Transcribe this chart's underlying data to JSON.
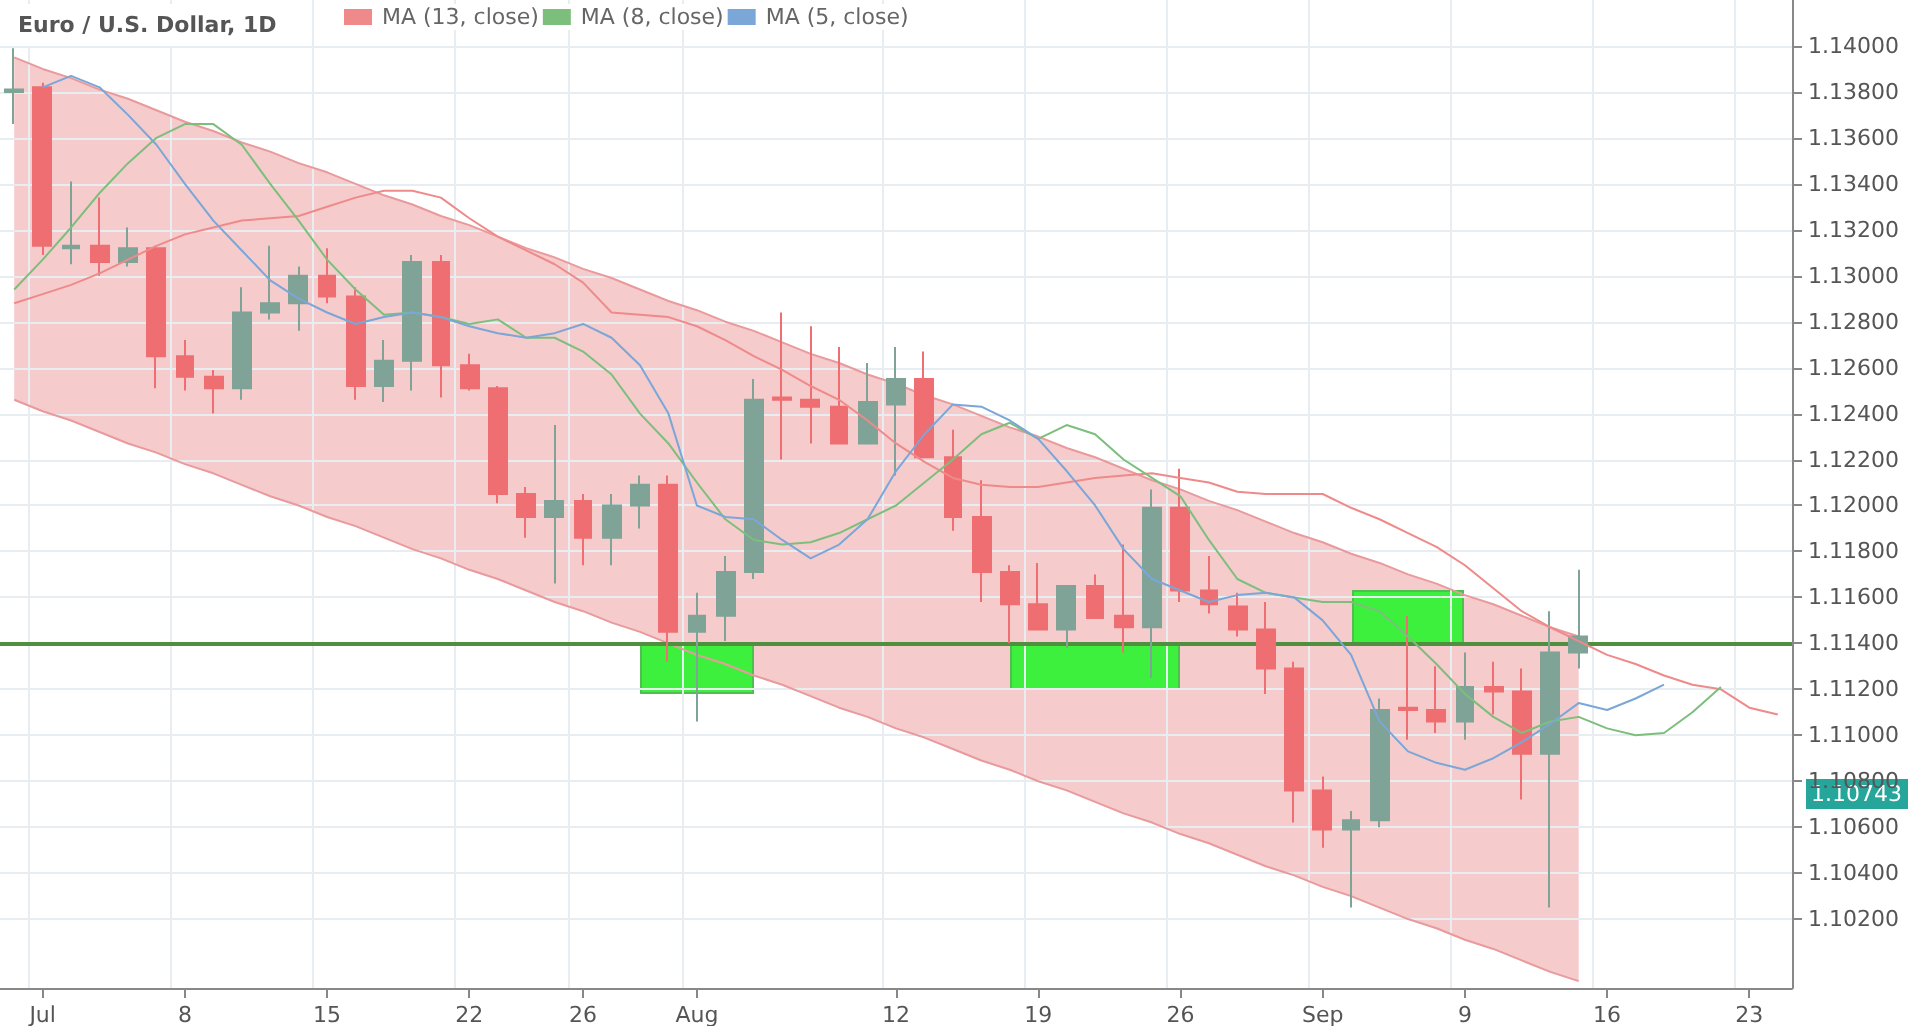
{
  "chart_data": {
    "type": "candlestick",
    "title": "Euro / U.S. Dollar, 1D",
    "categories": [
      null,
      "Jul",
      null,
      null,
      null,
      null,
      "8",
      null,
      null,
      null,
      null,
      "15",
      null,
      null,
      null,
      null,
      "22",
      null,
      null,
      null,
      "26",
      null,
      null,
      null,
      "Aug",
      null,
      null,
      null,
      null,
      null,
      null,
      "12",
      null,
      null,
      null,
      null,
      "19",
      null,
      null,
      null,
      null,
      "26",
      null,
      null,
      null,
      null,
      "Sep",
      null,
      null,
      null,
      null,
      "9",
      null,
      null,
      null,
      null,
      "16",
      null,
      null,
      null,
      null,
      "23",
      null
    ],
    "ohlc": [
      [
        1.138,
        1.1399,
        1.1366,
        1.1381
      ],
      [
        1.1382,
        1.1384,
        1.1309,
        1.1313
      ],
      [
        1.1312,
        1.1341,
        1.1305,
        1.1313
      ],
      [
        1.1313,
        1.1334,
        1.13,
        1.1306
      ],
      [
        1.1306,
        1.1321,
        1.1304,
        1.1312
      ],
      [
        1.1312,
        1.1313,
        1.1251,
        1.1265
      ],
      [
        1.1265,
        1.1272,
        1.125,
        1.1256
      ],
      [
        1.1256,
        1.1259,
        1.124,
        1.1251
      ],
      [
        1.1251,
        1.1295,
        1.1246,
        1.1284
      ],
      [
        1.1284,
        1.1313,
        1.1281,
        1.1288
      ],
      [
        1.1288,
        1.1304,
        1.1276,
        1.13
      ],
      [
        1.13,
        1.1312,
        1.1288,
        1.1291
      ],
      [
        1.1291,
        1.1295,
        1.1246,
        1.1252
      ],
      [
        1.1252,
        1.1272,
        1.1245,
        1.1263
      ],
      [
        1.1263,
        1.1309,
        1.125,
        1.1306
      ],
      [
        1.1306,
        1.1309,
        1.1247,
        1.1261
      ],
      [
        1.1261,
        1.1266,
        1.125,
        1.1251
      ],
      [
        1.1251,
        1.1252,
        1.1201,
        1.1205
      ],
      [
        1.1205,
        1.1208,
        1.1186,
        1.1195
      ],
      [
        1.1195,
        1.1235,
        1.1166,
        1.1202
      ],
      [
        1.1202,
        1.1205,
        1.1174,
        1.1186
      ],
      [
        1.1186,
        1.1205,
        1.1174,
        1.12
      ],
      [
        1.12,
        1.1213,
        1.119,
        1.1209
      ],
      [
        1.1209,
        1.1213,
        1.1132,
        1.1145
      ],
      [
        1.1145,
        1.1162,
        1.1106,
        1.1152
      ],
      [
        1.1152,
        1.1178,
        1.1141,
        1.1171
      ],
      [
        1.1171,
        1.1255,
        1.1168,
        1.1246
      ],
      [
        1.1247,
        1.1284,
        1.122,
        1.1246
      ],
      [
        1.1246,
        1.1278,
        1.1227,
        1.1243
      ],
      [
        1.1243,
        1.1269,
        1.1227,
        1.1227
      ],
      [
        1.1227,
        1.1262,
        1.1227,
        1.1245
      ],
      [
        1.1244,
        1.1269,
        1.1213,
        1.1255
      ],
      [
        1.1255,
        1.1267,
        1.1221,
        1.1221
      ],
      [
        1.1221,
        1.1233,
        1.1189,
        1.1195
      ],
      [
        1.1195,
        1.1211,
        1.1158,
        1.1171
      ],
      [
        1.1171,
        1.1174,
        1.114,
        1.1157
      ],
      [
        1.1157,
        1.1175,
        1.1146,
        1.1146
      ],
      [
        1.1146,
        1.1165,
        1.1138,
        1.1165
      ],
      [
        1.1165,
        1.117,
        1.1151,
        1.1151
      ],
      [
        1.1152,
        1.1183,
        1.1136,
        1.1147
      ],
      [
        1.1147,
        1.1207,
        1.1125,
        1.1199
      ],
      [
        1.1199,
        1.1216,
        1.1158,
        1.1163
      ],
      [
        1.1163,
        1.1178,
        1.1153,
        1.1157
      ],
      [
        1.1156,
        1.1162,
        1.1143,
        1.1146
      ],
      [
        1.1146,
        1.1158,
        1.1118,
        1.1129
      ],
      [
        1.1129,
        1.1132,
        1.1062,
        1.1076
      ],
      [
        1.1076,
        1.1082,
        1.1051,
        1.1059
      ],
      [
        1.1059,
        1.1067,
        1.1025,
        1.1063
      ],
      [
        1.1063,
        1.1116,
        1.106,
        1.1111
      ],
      [
        1.1112,
        1.1152,
        1.1098,
        1.1111
      ],
      [
        1.1111,
        1.113,
        1.1101,
        1.1106
      ],
      [
        1.1106,
        1.1136,
        1.1098,
        1.1121
      ],
      [
        1.1121,
        1.1132,
        1.1109,
        1.1119
      ],
      [
        1.1119,
        1.1129,
        1.1072,
        1.1092
      ],
      [
        1.1092,
        1.1154,
        1.1025,
        1.1136
      ],
      [
        1.1136,
        1.1172,
        1.1129,
        1.1143
      ],
      null,
      null,
      null,
      null,
      null,
      null,
      null
    ],
    "series": [
      {
        "type": "line",
        "color": "#e89a9c",
        "values": [
          1.1246,
          1.1241,
          1.1237,
          1.1232,
          1.1227,
          1.1223,
          1.1218,
          1.1214,
          1.1209,
          1.1204,
          1.12,
          1.1195,
          1.1191,
          1.1186,
          1.1181,
          1.1177,
          1.1172,
          1.1168,
          1.1163,
          1.1158,
          1.1154,
          1.1149,
          1.1145,
          1.114,
          1.1135,
          1.1131,
          1.1126,
          1.1122,
          1.1117,
          1.1112,
          1.1108,
          1.1103,
          1.1099,
          1.1094,
          1.1089,
          1.1085,
          1.108,
          1.1076,
          1.1071,
          1.1066,
          1.1062,
          1.1057,
          1.1053,
          1.1048,
          1.1043,
          1.1039,
          1.1034,
          1.103,
          1.1025,
          1.102,
          1.1016,
          1.1011,
          1.1007,
          1.1002,
          1.0997,
          1.0993,
          null,
          null,
          null,
          null,
          null,
          null,
          null
        ]
      },
      {
        "type": "area",
        "color": "#f6cbcc",
        "values": [
          1.1395,
          1.139,
          1.1386,
          1.1381,
          1.1377,
          1.1372,
          1.1367,
          1.1363,
          1.1358,
          1.1354,
          1.1349,
          1.1345,
          1.134,
          1.1335,
          1.1331,
          1.1326,
          1.1322,
          1.1317,
          1.1312,
          1.1308,
          1.1303,
          1.1299,
          1.1294,
          1.1289,
          1.1285,
          1.128,
          1.1276,
          1.1271,
          1.1266,
          1.1262,
          1.1257,
          1.1253,
          1.1248,
          1.1244,
          1.1239,
          1.1234,
          1.123,
          1.1225,
          1.1221,
          1.1216,
          1.1211,
          1.1207,
          1.1202,
          1.1198,
          1.1193,
          1.1188,
          1.1184,
          1.1179,
          1.1175,
          1.117,
          1.1166,
          1.1161,
          1.1157,
          1.1152,
          1.1147,
          1.1143,
          null,
          null,
          null,
          null,
          null,
          null,
          null
        ]
      },
      {
        "type": "line",
        "name": "MA (13, close)",
        "color": "#ef8a8a",
        "values": [
          1.1288,
          1.1292,
          1.1296,
          1.1301,
          1.1307,
          1.1313,
          1.1318,
          1.1321,
          1.1324,
          1.1325,
          1.1326,
          1.133,
          1.1334,
          1.1337,
          1.1337,
          1.1334,
          1.1325,
          1.1317,
          1.1311,
          1.1305,
          1.1297,
          1.1284,
          1.1283,
          1.1282,
          1.1278,
          1.1272,
          1.1265,
          1.1259,
          1.1252,
          1.1246,
          1.1237,
          1.1227,
          1.1219,
          1.1212,
          1.1209,
          1.1208,
          1.1208,
          1.121,
          1.1212,
          1.1213,
          1.1214,
          1.1212,
          1.121,
          1.1206,
          1.1205,
          1.1205,
          1.1205,
          1.1199,
          1.1194,
          1.1188,
          1.1182,
          1.1174,
          1.1164,
          1.1154,
          1.1147,
          1.1141,
          1.1135,
          1.1131,
          1.1126,
          1.1122,
          1.112,
          1.1112,
          1.1109
        ]
      },
      {
        "type": "line",
        "name": "MA (8, close)",
        "color": "#7cbf7c",
        "values": [
          1.1294,
          1.1307,
          1.1321,
          1.1336,
          1.1349,
          1.136,
          1.1366,
          1.1366,
          1.1357,
          1.134,
          1.1324,
          1.1307,
          1.1294,
          1.1283,
          1.1284,
          1.1282,
          1.1279,
          1.1281,
          1.1273,
          1.1273,
          1.1267,
          1.1257,
          1.124,
          1.1227,
          1.121,
          1.1194,
          1.1185,
          1.1183,
          1.1184,
          1.1188,
          1.1194,
          1.12,
          1.121,
          1.122,
          1.1231,
          1.1236,
          1.1229,
          1.1235,
          1.1231,
          1.122,
          1.1212,
          1.1204,
          1.1185,
          1.1168,
          1.1162,
          1.116,
          1.1158,
          1.1158,
          1.1154,
          1.1143,
          1.1131,
          1.1118,
          1.1108,
          1.1101,
          1.1106,
          1.1108,
          1.1103,
          1.11,
          1.1101,
          1.111,
          1.1121,
          null,
          null
        ]
      },
      {
        "type": "line",
        "name": "MA (5, close)",
        "color": "#7aa6d8",
        "values": [
          null,
          1.1382,
          1.1387,
          1.1382,
          1.137,
          1.1357,
          1.134,
          1.1324,
          1.1311,
          1.1298,
          1.129,
          1.1284,
          1.1279,
          1.1282,
          1.1284,
          1.1282,
          1.1278,
          1.1275,
          1.1273,
          1.1275,
          1.1279,
          1.1273,
          1.1261,
          1.124,
          1.12,
          1.1195,
          1.1194,
          1.1185,
          1.1177,
          1.1183,
          1.1194,
          1.1215,
          1.1231,
          1.1244,
          1.1243,
          1.1237,
          1.1229,
          1.1215,
          1.12,
          1.1181,
          1.1168,
          1.1163,
          1.1158,
          1.1161,
          1.1162,
          1.116,
          1.115,
          1.1135,
          1.1106,
          1.1093,
          1.1088,
          1.1085,
          1.109,
          1.1097,
          1.1105,
          1.1114,
          1.1111,
          1.1116,
          1.1122,
          null,
          null,
          null,
          null
        ]
      }
    ],
    "ylim": [
      1.099,
      1.142
    ],
    "yticks": [
      {
        "value": 1.102,
        "label": "1.10200"
      },
      {
        "value": 1.104,
        "label": "1.10400"
      },
      {
        "value": 1.106,
        "label": "1.10600"
      },
      {
        "value": 1.108,
        "label": "1.10800"
      },
      {
        "value": 1.11,
        "label": "1.11000"
      },
      {
        "value": 1.112,
        "label": "1.11200"
      },
      {
        "value": 1.114,
        "label": "1.11400"
      },
      {
        "value": 1.116,
        "label": "1.11600"
      },
      {
        "value": 1.118,
        "label": "1.11800"
      },
      {
        "value": 1.12,
        "label": "1.12000"
      },
      {
        "value": 1.122,
        "label": "1.12200"
      },
      {
        "value": 1.124,
        "label": "1.12400"
      },
      {
        "value": 1.126,
        "label": "1.12600"
      },
      {
        "value": 1.128,
        "label": "1.12800"
      },
      {
        "value": 1.13,
        "label": "1.13000"
      },
      {
        "value": 1.132,
        "label": "1.13200"
      },
      {
        "value": 1.134,
        "label": "1.13400"
      },
      {
        "value": 1.136,
        "label": "1.13600"
      },
      {
        "value": 1.138,
        "label": "1.13800"
      },
      {
        "value": 1.14,
        "label": "1.14000"
      }
    ],
    "ref_lines": [
      {
        "axis": "y",
        "value": 1.114,
        "color": "#4f8f3f"
      }
    ],
    "annotations": [
      "1.10743"
    ],
    "grid": true,
    "legend": "top left",
    "marker": "none"
  }
}
